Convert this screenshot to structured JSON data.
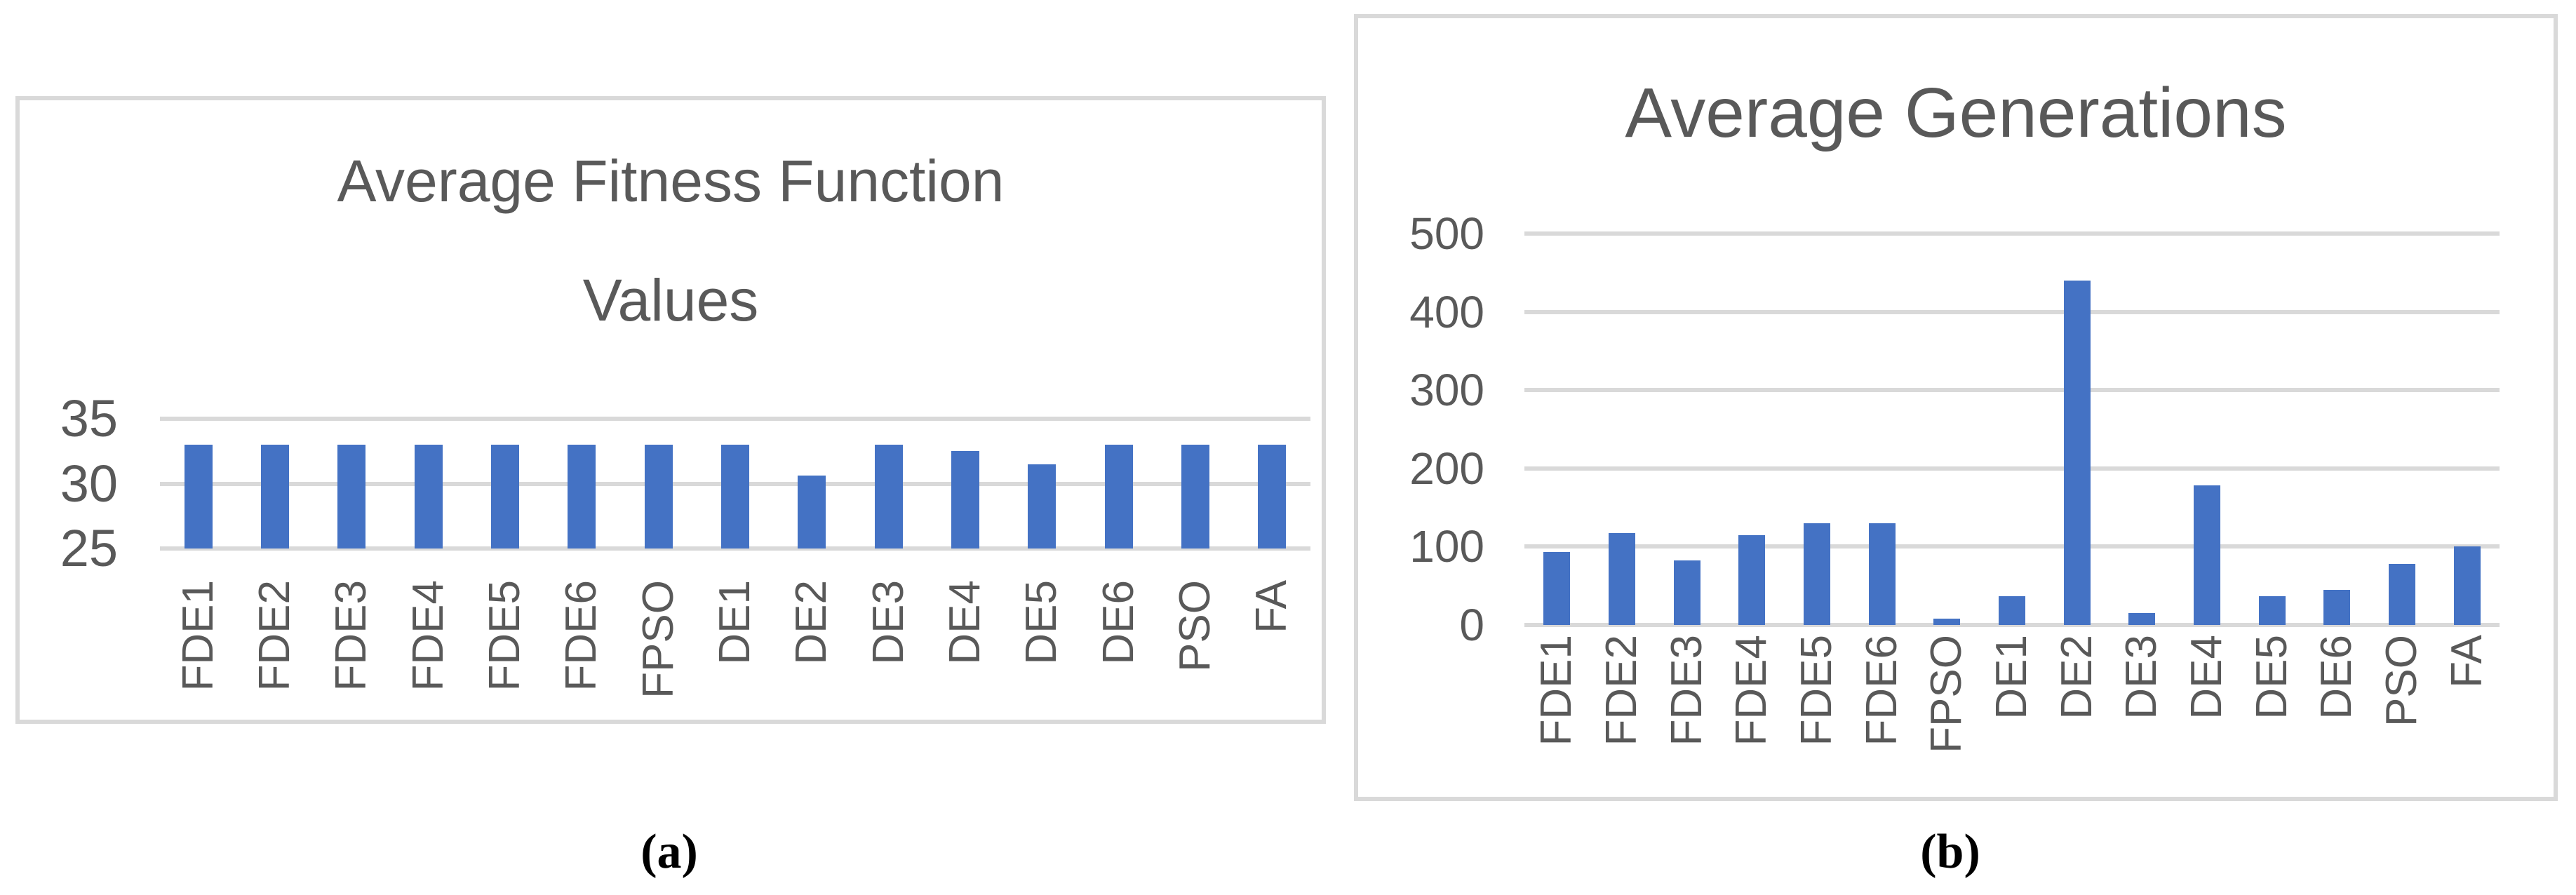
{
  "captions": {
    "a": "(a)",
    "b": "(b)"
  },
  "colors": {
    "bar": "#4472C4",
    "gridline": "#D9D9D9",
    "panel_border": "#D9D9D9",
    "axis_text": "#595959",
    "caption_text": "#000000"
  },
  "chart_data": [
    {
      "type": "bar",
      "title": "Average Fitness Function Values",
      "title_lines": [
        "Average Fitness Function",
        "Values"
      ],
      "categories": [
        "FDE1",
        "FDE2",
        "FDE3",
        "FDE4",
        "FDE5",
        "FDE6",
        "FPSO",
        "DE1",
        "DE2",
        "DE3",
        "DE4",
        "DE5",
        "DE6",
        "PSO",
        "FA"
      ],
      "values": [
        33,
        33,
        33,
        33,
        33,
        33,
        33,
        33,
        30.6,
        33,
        32.5,
        31.5,
        33,
        33,
        33
      ],
      "ylim": [
        25,
        35
      ],
      "y_ticks": [
        35,
        30,
        25
      ],
      "xlabel": "",
      "ylabel": "",
      "grid": true,
      "legend": "none"
    },
    {
      "type": "bar",
      "title": "Average Generations",
      "title_lines": [
        "Average Generations"
      ],
      "categories": [
        "FDE1",
        "FDE2",
        "FDE3",
        "FDE4",
        "FDE5",
        "FDE6",
        "FPSO",
        "DE1",
        "DE2",
        "DE3",
        "DE4",
        "DE5",
        "DE6",
        "PSO",
        "FA"
      ],
      "values": [
        93,
        117,
        82,
        115,
        130,
        130,
        8,
        37,
        440,
        15,
        178,
        37,
        45,
        78,
        100
      ],
      "ylim": [
        0,
        500
      ],
      "y_ticks": [
        500,
        400,
        300,
        200,
        100,
        0
      ],
      "xlabel": "",
      "ylabel": "",
      "grid": true,
      "legend": "none"
    }
  ]
}
